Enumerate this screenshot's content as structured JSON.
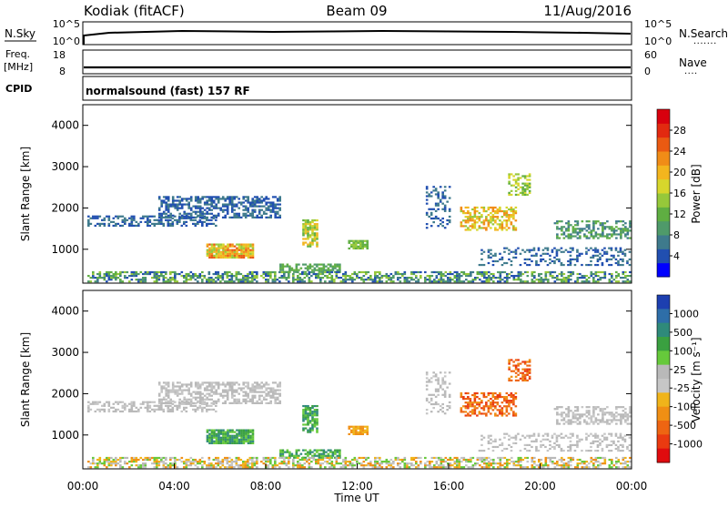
{
  "header": {
    "station": "Kodiak (fitACF)",
    "beam": "Beam 09",
    "date": "11/Aug/2016"
  },
  "top_panels": {
    "nsky_label": "N.Sky",
    "nsky_ticks": [
      "10^5",
      "10^0"
    ],
    "nsearch_label": "N.Search",
    "nsearch_ticks": [
      "10^5",
      "10^0"
    ],
    "freq_label": "Freq.",
    "freq_unit": "[MHz]",
    "freq_ticks": [
      "18",
      "8"
    ],
    "nave_label": "Nave",
    "nave_ticks": [
      "60",
      "0"
    ],
    "cpid_label": "CPID",
    "cpid_text": "normalsound (fast) 157 RF"
  },
  "chart_data": [
    {
      "type": "heatmap",
      "name": "power",
      "ylabel": "Slant Range [km]",
      "ylim": [
        180,
        4500
      ],
      "yticks": [
        "1000",
        "2000",
        "3000",
        "4000"
      ],
      "colorbar": {
        "label": "Power [dB]",
        "ticks": [
          "4",
          "8",
          "12",
          "16",
          "20",
          "24",
          "28"
        ],
        "colors": [
          "#0000ff",
          "#214fb0",
          "#3e7a8c",
          "#4f9a6a",
          "#5fae42",
          "#96c83a",
          "#d7d62c",
          "#f3b51e",
          "#f08c17",
          "#ea5a12",
          "#e22a10",
          "#d8000e"
        ]
      }
    },
    {
      "type": "heatmap",
      "name": "velocity",
      "ylabel": "Slant Range [km]",
      "ylim": [
        180,
        4500
      ],
      "yticks": [
        "1000",
        "2000",
        "3000",
        "4000"
      ],
      "xlabel": "Time UT",
      "xticks": [
        "00:00",
        "04:00",
        "08:00",
        "12:00",
        "16:00",
        "20:00",
        "00:00"
      ],
      "colorbar": {
        "label": "Velocity [m s⁻¹]",
        "ticks": [
          "1000",
          "500",
          "100",
          "25",
          "-25",
          "-100",
          "-500",
          "-1000"
        ],
        "colors": [
          "#1d3fb0",
          "#2e6ea8",
          "#2f8a7a",
          "#3aa040",
          "#66c93b",
          "#b9b9b9",
          "#c6c6c6",
          "#f0b41a",
          "#f08f14",
          "#ee6512",
          "#ea3a10",
          "#e00b0e"
        ]
      }
    }
  ]
}
